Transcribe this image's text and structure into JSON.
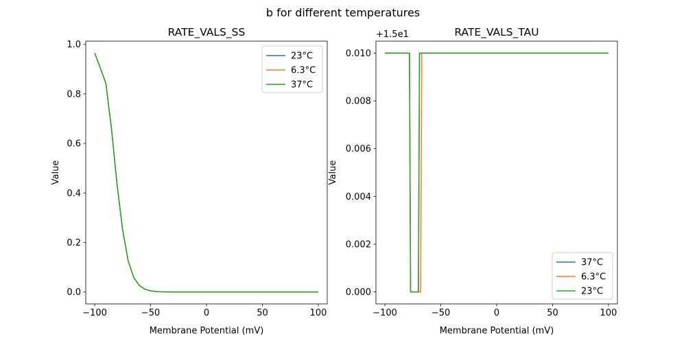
{
  "figure": {
    "suptitle": "b for different temperatures"
  },
  "colors": {
    "c0": "#1f77b4",
    "c1": "#ff7f0e",
    "c2": "#2ca02c"
  },
  "chart_data": [
    {
      "type": "line",
      "title": "RATE_VALS_SS",
      "xlabel": "Membrane Potential (mV)",
      "ylabel": "Value",
      "xlim": [
        -108,
        108
      ],
      "ylim": [
        -0.048,
        1.013
      ],
      "xticks": [
        -100,
        -50,
        0,
        50,
        100
      ],
      "xtick_labels": [
        "−100",
        "−50",
        "0",
        "50",
        "100"
      ],
      "yticks": [
        0.0,
        0.2,
        0.4,
        0.6,
        0.8,
        1.0
      ],
      "ytick_labels": [
        "0.0",
        "0.2",
        "0.4",
        "0.6",
        "0.8",
        "1.0"
      ],
      "legend_position": "upper right",
      "series": [
        {
          "name": "23°C",
          "color": "#1f77b4",
          "x": [
            -100,
            -95,
            -90,
            -85,
            -80,
            -75,
            -70,
            -65,
            -60,
            -55,
            -50,
            -45,
            -40,
            -35,
            -30,
            0,
            50,
            100
          ],
          "y": [
            0.965,
            0.905,
            0.843,
            0.66,
            0.435,
            0.25,
            0.125,
            0.058,
            0.026,
            0.011,
            0.0047,
            0.002,
            0.0009,
            0.0004,
            0.0002,
            0.0,
            0.0,
            0.0
          ]
        },
        {
          "name": "6.3°C",
          "color": "#ff7f0e",
          "x": [
            -100,
            -95,
            -90,
            -85,
            -80,
            -75,
            -70,
            -65,
            -60,
            -55,
            -50,
            -45,
            -40,
            -35,
            -30,
            0,
            50,
            100
          ],
          "y": [
            0.965,
            0.905,
            0.843,
            0.66,
            0.435,
            0.25,
            0.125,
            0.058,
            0.026,
            0.011,
            0.0047,
            0.002,
            0.0009,
            0.0004,
            0.0002,
            0.0,
            0.0,
            0.0
          ]
        },
        {
          "name": "37°C",
          "color": "#2ca02c",
          "x": [
            -100,
            -95,
            -90,
            -85,
            -80,
            -75,
            -70,
            -65,
            -60,
            -55,
            -50,
            -45,
            -40,
            -35,
            -30,
            0,
            50,
            100
          ],
          "y": [
            0.965,
            0.905,
            0.843,
            0.66,
            0.435,
            0.25,
            0.125,
            0.058,
            0.026,
            0.011,
            0.0047,
            0.002,
            0.0009,
            0.0004,
            0.0002,
            0.0,
            0.0,
            0.0
          ]
        }
      ]
    },
    {
      "type": "line",
      "title": "RATE_VALS_TAU",
      "xlabel": "Membrane Potential (mV)",
      "ylabel": "Value",
      "offset_label": "+1.5e1",
      "xlim": [
        -108,
        108
      ],
      "ylim": [
        -0.0005,
        0.0105
      ],
      "xticks": [
        -100,
        -50,
        0,
        50,
        100
      ],
      "xtick_labels": [
        "−100",
        "−50",
        "0",
        "50",
        "100"
      ],
      "yticks": [
        0.0,
        0.002,
        0.004,
        0.006,
        0.008,
        0.01
      ],
      "ytick_labels": [
        "0.000",
        "0.002",
        "0.004",
        "0.006",
        "0.008",
        "0.010"
      ],
      "legend_position": "lower right",
      "series": [
        {
          "name": "37°C",
          "color": "#1f77b4",
          "x": [
            -100,
            -78,
            -77,
            -70,
            -69,
            100
          ],
          "y": [
            0.01,
            0.01,
            0.0,
            0.0,
            0.01,
            0.01
          ]
        },
        {
          "name": "6.3°C",
          "color": "#ff7f0e",
          "x": [
            -100,
            -78,
            -77,
            -68,
            -67,
            100
          ],
          "y": [
            0.01,
            0.01,
            0.0,
            0.0,
            0.01,
            0.01
          ]
        },
        {
          "name": "23°C",
          "color": "#2ca02c",
          "x": [
            -100,
            -78,
            -77,
            -70,
            -69,
            100
          ],
          "y": [
            0.01,
            0.01,
            0.0,
            0.0,
            0.01,
            0.01
          ]
        }
      ]
    }
  ]
}
